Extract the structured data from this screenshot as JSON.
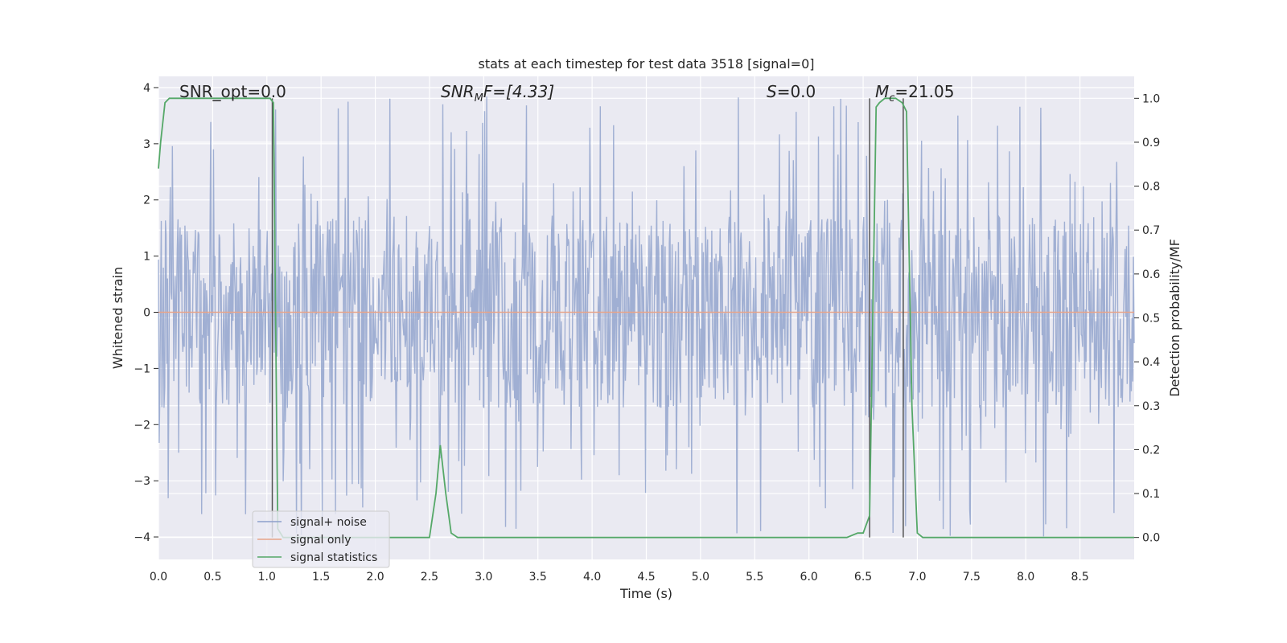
{
  "chart_data": {
    "type": "line",
    "title": "stats at each timestep for test data 3518 [signal=0]",
    "xlabel": "Time (s)",
    "ylabel": "Whitened strain",
    "ylabel_right": "Detection probability/MF",
    "xlim": [
      0.0,
      9.0
    ],
    "ylim": [
      -4.4,
      4.2
    ],
    "ylim_right": [
      -0.05,
      1.05
    ],
    "x_ticks": [
      0.0,
      0.5,
      1.0,
      1.5,
      2.0,
      2.5,
      3.0,
      3.5,
      4.0,
      4.5,
      5.0,
      5.5,
      6.0,
      6.5,
      7.0,
      7.5,
      8.0,
      8.5
    ],
    "y_ticks": [
      4,
      3,
      2,
      1,
      0,
      -1,
      -2,
      -3,
      -4
    ],
    "y_tick_labels": [
      "4",
      "3",
      "2",
      "1",
      "0",
      "−1",
      "−2",
      "−3",
      "−4"
    ],
    "y_right_ticks": [
      1.0,
      0.9,
      0.8,
      0.7,
      0.6,
      0.5,
      0.4,
      0.3,
      0.2,
      0.1,
      0.0
    ],
    "y_right_tick_labels": [
      "1.0",
      "0.9",
      "0.8",
      "0.7",
      "0.6",
      "0.5",
      "0.4",
      "0.3",
      "0.2",
      "0.1",
      "0.0"
    ],
    "grid": true,
    "legend_position": "lower-left",
    "annotations": {
      "snr_opt": "SNR_opt=0.0",
      "snr_mf_main": "SNR",
      "snr_mf_sub": "M",
      "snr_mf_rest": "F=[4.33]",
      "s_main": "S",
      "s_rest": "=0.0",
      "mc_main": "M",
      "mc_sub": "c",
      "mc_rest": "=21.05"
    },
    "series": [
      {
        "name": "signal+ noise",
        "color": "#8da0cb",
        "description_range": [
          -4.0,
          3.85
        ],
        "typical_range": [
          -1.6,
          1.5
        ]
      },
      {
        "name": "signal only",
        "color": "#e8a48a",
        "x": [
          0.0,
          9.0
        ],
        "y": [
          0.0,
          0.0
        ]
      },
      {
        "name": "signal statistics",
        "color": "#55a868",
        "axis": "right",
        "x": [
          0.0,
          0.02,
          0.06,
          0.1,
          0.15,
          0.2,
          0.5,
          0.8,
          1.0,
          1.03,
          1.06,
          1.1,
          1.15,
          1.3,
          2.0,
          2.5,
          2.56,
          2.6,
          2.65,
          2.7,
          2.76,
          3.0,
          4.0,
          5.0,
          6.0,
          6.35,
          6.45,
          6.5,
          6.56,
          6.62,
          6.65,
          6.7,
          6.8,
          6.86,
          6.9,
          6.95,
          7.0,
          7.05,
          7.5,
          8.0,
          8.5,
          9.0
        ],
        "y": [
          0.84,
          0.9,
          0.99,
          1.0,
          1.0,
          1.0,
          1.0,
          1.0,
          1.0,
          1.0,
          0.99,
          0.02,
          0.0,
          0.0,
          0.0,
          0.0,
          0.1,
          0.21,
          0.1,
          0.01,
          0.0,
          0.0,
          0.0,
          0.0,
          0.0,
          0.0,
          0.01,
          0.01,
          0.05,
          0.98,
          0.99,
          1.0,
          1.0,
          0.99,
          0.97,
          0.3,
          0.01,
          0.0,
          0.0,
          0.0,
          0.0,
          0.0
        ]
      }
    ],
    "vertical_markers": [
      {
        "x": 1.05,
        "ymin": 0.0,
        "ymax": 1.0,
        "color": "#555555"
      },
      {
        "x": 6.56,
        "ymin": 0.0,
        "ymax": 1.0,
        "color": "#555555"
      },
      {
        "x": 6.87,
        "ymin": 0.0,
        "ymax": 1.0,
        "color": "#555555"
      }
    ]
  },
  "legend": {
    "items": [
      {
        "label": "signal+ noise",
        "color": "#8da0cb"
      },
      {
        "label": "signal only",
        "color": "#e8a48a"
      },
      {
        "label": "signal statistics",
        "color": "#55a868"
      }
    ]
  }
}
